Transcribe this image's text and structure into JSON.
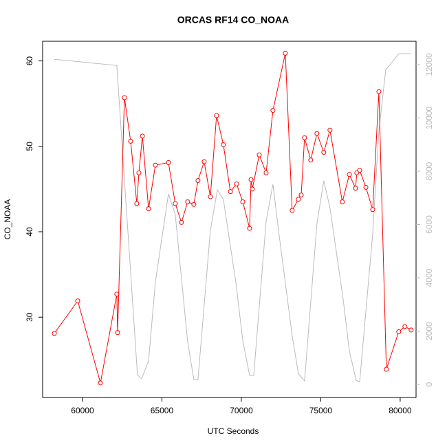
{
  "chart_data": {
    "type": "line",
    "title": "ORCAS RF14 CO_NOAA",
    "xlabel": "UTC Seconds",
    "ylabel": "CO_NOAA",
    "xlim": [
      57490,
      81000
    ],
    "ylim": [
      20.6,
      62.3
    ],
    "y2lim": [
      -490,
      12877
    ],
    "xticks": [
      60000,
      65000,
      70000,
      75000,
      80000
    ],
    "yticks": [
      30,
      40,
      50,
      60
    ],
    "y2ticks": [
      0,
      2000,
      4000,
      6000,
      8000,
      10000,
      12000
    ],
    "y2color": "#bbbbbb",
    "series": [
      {
        "color": "#ff0000",
        "markers": true,
        "x": [
          58225,
          59700,
          61130,
          62160,
          62210,
          62640,
          63030,
          63420,
          63550,
          63770,
          64160,
          64590,
          65410,
          65840,
          66230,
          66620,
          67010,
          67270,
          67660,
          68050,
          68440,
          68870,
          69310,
          69700,
          70090,
          70520,
          70610,
          70690,
          71130,
          71560,
          71990,
          72770,
          73200,
          73590,
          73770,
          73980,
          74370,
          74760,
          75190,
          75580,
          76360,
          76800,
          77190,
          77270,
          77450,
          77840,
          78270,
          78660,
          79130,
          79910,
          80300,
          80690
        ],
        "values": [
          28.1,
          31.9,
          22.3,
          32.7,
          28.2,
          55.7,
          50.6,
          43.3,
          46.9,
          51.2,
          42.7,
          47.8,
          48.1,
          43.3,
          41.1,
          43.5,
          43.2,
          46.0,
          48.2,
          44.1,
          53.6,
          50.2,
          44.7,
          45.6,
          43.5,
          40.4,
          46.1,
          45.0,
          49.0,
          46.9,
          54.2,
          60.9,
          42.5,
          43.8,
          44.3,
          51.0,
          48.4,
          51.5,
          49.3,
          51.9,
          43.5,
          46.7,
          45.1,
          46.9,
          47.2,
          45.2,
          42.6,
          56.4,
          23.9,
          28.3,
          28.9,
          28.5
        ]
      },
      {
        "color": "#bbbbbb",
        "markers": false,
        "axis": "y2",
        "x": [
          58225,
          62160,
          63460,
          63720,
          64160,
          64590,
          65410,
          65840,
          66190,
          66620,
          67010,
          67270,
          68050,
          68490,
          68870,
          69650,
          70090,
          70520,
          70780,
          71560,
          71990,
          72380,
          73200,
          73590,
          73980,
          74760,
          75190,
          75580,
          76410,
          76800,
          77230,
          77450,
          78270,
          78660,
          79090,
          79910,
          80690
        ],
        "values": [
          12200,
          11970,
          360,
          210,
          880,
          3850,
          7150,
          6370,
          4230,
          1600,
          180,
          180,
          5780,
          7300,
          6940,
          3850,
          1650,
          340,
          340,
          6120,
          7510,
          5600,
          1830,
          410,
          130,
          6040,
          7640,
          6630,
          3200,
          1260,
          150,
          100,
          5650,
          9520,
          11800,
          12410,
          12410
        ]
      }
    ]
  }
}
